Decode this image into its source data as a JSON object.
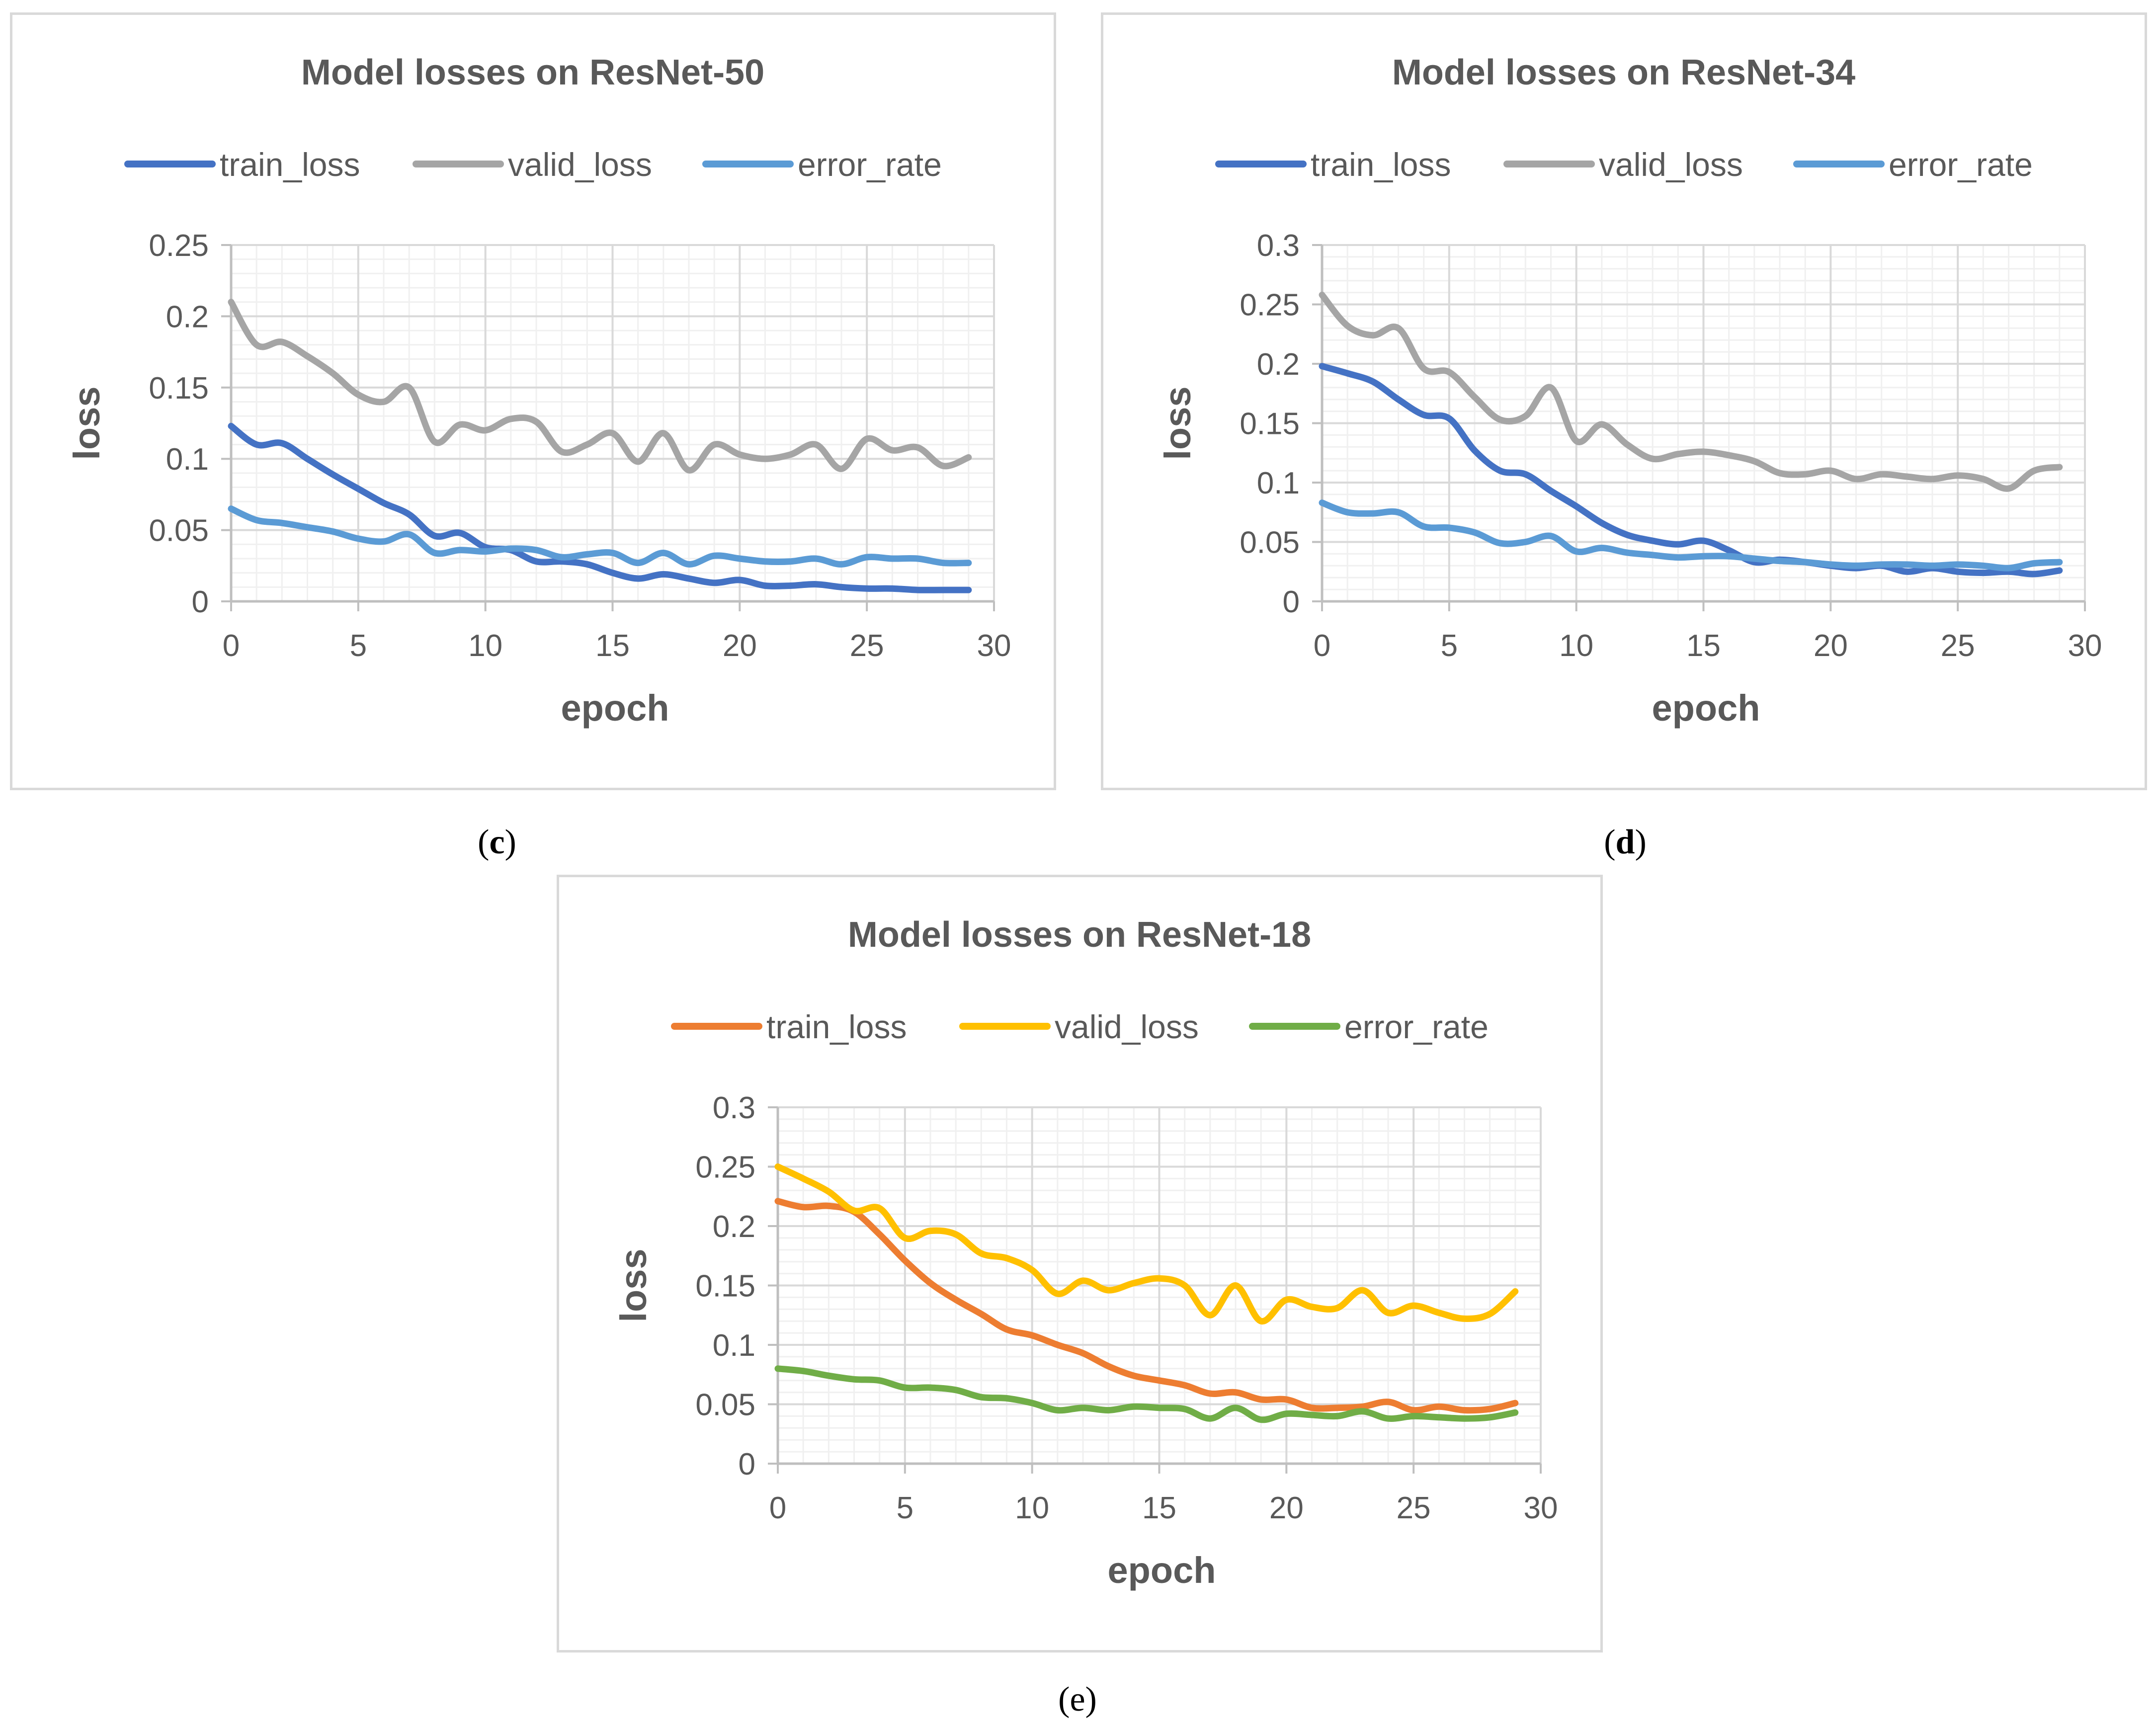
{
  "captions": {
    "c": "c",
    "d": "d",
    "e": "e"
  },
  "chart_data": [
    {
      "id": "c",
      "type": "line",
      "title": "Model losses on ResNet-50",
      "xlabel": "epoch",
      "ylabel": "loss",
      "xlim": [
        0,
        30
      ],
      "ylim": [
        0,
        0.25
      ],
      "xticks": [
        0,
        5,
        10,
        15,
        20,
        25,
        30
      ],
      "yticks": [
        0,
        0.05,
        0.1,
        0.15,
        0.2,
        0.25
      ],
      "xtick_labels": [
        "0",
        "5",
        "10",
        "15",
        "20",
        "25",
        "30"
      ],
      "ytick_labels": [
        "0",
        "0.05",
        "0.1",
        "0.15",
        "0.2",
        "0.25"
      ],
      "grid": true,
      "legend": "top",
      "x": [
        0,
        1,
        2,
        3,
        4,
        5,
        6,
        7,
        8,
        9,
        10,
        11,
        12,
        13,
        14,
        15,
        16,
        17,
        18,
        19,
        20,
        21,
        22,
        23,
        24,
        25,
        26,
        27,
        28,
        29
      ],
      "series": [
        {
          "name": "train_loss",
          "color": "#4472c4",
          "values": [
            0.123,
            0.11,
            0.111,
            0.1,
            0.089,
            0.079,
            0.069,
            0.061,
            0.046,
            0.048,
            0.038,
            0.036,
            0.028,
            0.028,
            0.026,
            0.02,
            0.016,
            0.019,
            0.016,
            0.013,
            0.015,
            0.011,
            0.011,
            0.012,
            0.01,
            0.009,
            0.009,
            0.008,
            0.008,
            0.008
          ]
        },
        {
          "name": "valid_loss",
          "color": "#a5a5a5",
          "values": [
            0.21,
            0.18,
            0.182,
            0.172,
            0.16,
            0.145,
            0.14,
            0.15,
            0.112,
            0.124,
            0.12,
            0.128,
            0.126,
            0.105,
            0.11,
            0.118,
            0.098,
            0.118,
            0.092,
            0.11,
            0.103,
            0.1,
            0.103,
            0.11,
            0.093,
            0.114,
            0.106,
            0.108,
            0.095,
            0.101
          ]
        },
        {
          "name": "error_rate",
          "color": "#5b9bd5",
          "values": [
            0.065,
            0.057,
            0.055,
            0.052,
            0.049,
            0.044,
            0.042,
            0.047,
            0.034,
            0.036,
            0.035,
            0.037,
            0.036,
            0.031,
            0.033,
            0.034,
            0.027,
            0.034,
            0.026,
            0.032,
            0.03,
            0.028,
            0.028,
            0.03,
            0.026,
            0.031,
            0.03,
            0.03,
            0.027,
            0.027
          ]
        }
      ]
    },
    {
      "id": "d",
      "type": "line",
      "title": "Model losses on ResNet-34",
      "xlabel": "epoch",
      "ylabel": "loss",
      "xlim": [
        0,
        30
      ],
      "ylim": [
        0,
        0.3
      ],
      "xticks": [
        0,
        5,
        10,
        15,
        20,
        25,
        30
      ],
      "yticks": [
        0,
        0.05,
        0.1,
        0.15,
        0.2,
        0.25,
        0.3
      ],
      "xtick_labels": [
        "0",
        "5",
        "10",
        "15",
        "20",
        "25",
        "30"
      ],
      "ytick_labels": [
        "0",
        "0.05",
        "0.1",
        "0.15",
        "0.2",
        "0.25",
        "0.3"
      ],
      "grid": true,
      "legend": "top",
      "x": [
        0,
        1,
        2,
        3,
        4,
        5,
        6,
        7,
        8,
        9,
        10,
        11,
        12,
        13,
        14,
        15,
        16,
        17,
        18,
        19,
        20,
        21,
        22,
        23,
        24,
        25,
        26,
        27,
        28,
        29
      ],
      "series": [
        {
          "name": "train_loss",
          "color": "#4472c4",
          "values": [
            0.198,
            0.192,
            0.185,
            0.17,
            0.157,
            0.154,
            0.127,
            0.11,
            0.107,
            0.093,
            0.08,
            0.066,
            0.056,
            0.051,
            0.048,
            0.051,
            0.043,
            0.033,
            0.035,
            0.033,
            0.03,
            0.028,
            0.03,
            0.025,
            0.028,
            0.025,
            0.024,
            0.025,
            0.023,
            0.026
          ]
        },
        {
          "name": "valid_loss",
          "color": "#a5a5a5",
          "values": [
            0.258,
            0.232,
            0.224,
            0.23,
            0.196,
            0.193,
            0.172,
            0.153,
            0.156,
            0.18,
            0.135,
            0.149,
            0.132,
            0.12,
            0.124,
            0.126,
            0.123,
            0.118,
            0.108,
            0.107,
            0.11,
            0.103,
            0.107,
            0.105,
            0.103,
            0.106,
            0.103,
            0.095,
            0.11,
            0.113
          ]
        },
        {
          "name": "error_rate",
          "color": "#5b9bd5",
          "values": [
            0.083,
            0.075,
            0.074,
            0.075,
            0.063,
            0.062,
            0.058,
            0.049,
            0.05,
            0.055,
            0.042,
            0.045,
            0.041,
            0.039,
            0.037,
            0.038,
            0.038,
            0.036,
            0.034,
            0.033,
            0.031,
            0.03,
            0.031,
            0.031,
            0.03,
            0.031,
            0.03,
            0.028,
            0.032,
            0.033
          ]
        }
      ]
    },
    {
      "id": "e",
      "type": "line",
      "title": "Model losses on ResNet-18",
      "xlabel": "epoch",
      "ylabel": "loss",
      "xlim": [
        0,
        30
      ],
      "ylim": [
        0,
        0.3
      ],
      "xticks": [
        0,
        5,
        10,
        15,
        20,
        25,
        30
      ],
      "yticks": [
        0,
        0.05,
        0.1,
        0.15,
        0.2,
        0.25,
        0.3
      ],
      "xtick_labels": [
        "0",
        "5",
        "10",
        "15",
        "20",
        "25",
        "30"
      ],
      "ytick_labels": [
        "0",
        "0.05",
        "0.1",
        "0.15",
        "0.2",
        "0.25",
        "0.3"
      ],
      "grid": true,
      "legend": "top",
      "x": [
        0,
        1,
        2,
        3,
        4,
        5,
        6,
        7,
        8,
        9,
        10,
        11,
        12,
        13,
        14,
        15,
        16,
        17,
        18,
        19,
        20,
        21,
        22,
        23,
        24,
        25,
        26,
        27,
        28,
        29
      ],
      "series": [
        {
          "name": "train_loss",
          "color": "#ed7d31",
          "values": [
            0.221,
            0.216,
            0.217,
            0.212,
            0.193,
            0.171,
            0.152,
            0.138,
            0.126,
            0.113,
            0.108,
            0.1,
            0.093,
            0.082,
            0.074,
            0.07,
            0.066,
            0.059,
            0.06,
            0.054,
            0.054,
            0.047,
            0.047,
            0.048,
            0.052,
            0.045,
            0.048,
            0.045,
            0.046,
            0.051
          ]
        },
        {
          "name": "valid_loss",
          "color": "#ffc000",
          "values": [
            0.25,
            0.24,
            0.229,
            0.213,
            0.215,
            0.19,
            0.196,
            0.193,
            0.177,
            0.173,
            0.163,
            0.143,
            0.154,
            0.146,
            0.152,
            0.156,
            0.15,
            0.125,
            0.15,
            0.12,
            0.138,
            0.132,
            0.131,
            0.146,
            0.127,
            0.133,
            0.127,
            0.122,
            0.126,
            0.145
          ]
        },
        {
          "name": "error_rate",
          "color": "#70ad47",
          "values": [
            0.08,
            0.078,
            0.074,
            0.071,
            0.07,
            0.064,
            0.064,
            0.062,
            0.056,
            0.055,
            0.051,
            0.045,
            0.047,
            0.045,
            0.048,
            0.047,
            0.046,
            0.038,
            0.047,
            0.037,
            0.042,
            0.041,
            0.04,
            0.044,
            0.038,
            0.04,
            0.039,
            0.038,
            0.039,
            0.043
          ]
        }
      ]
    }
  ]
}
